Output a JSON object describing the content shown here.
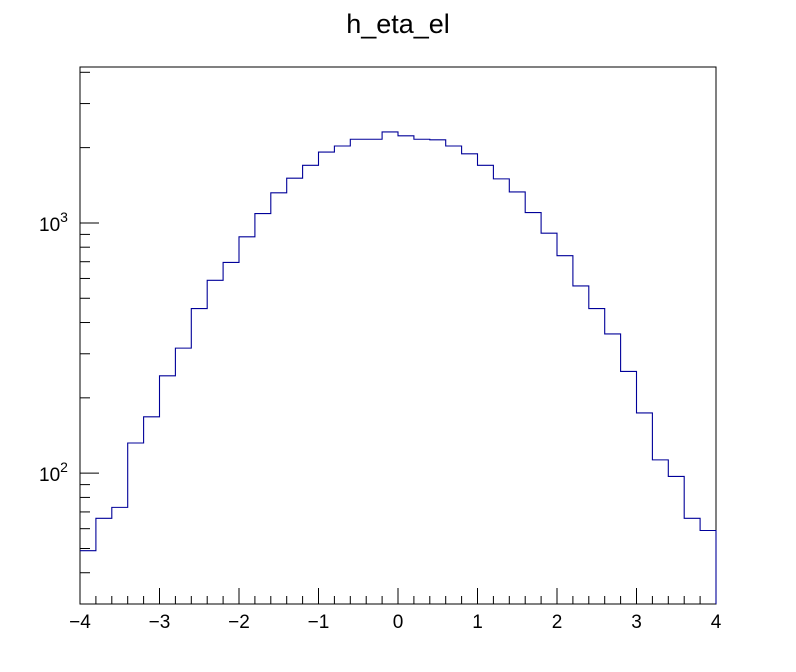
{
  "chart_data": {
    "type": "histogram",
    "title": "h_eta_el",
    "xlabel": "",
    "ylabel": "",
    "x_scale": "linear",
    "y_scale": "log",
    "xlim": [
      -4,
      4
    ],
    "ylim": [
      30,
      4200
    ],
    "grid": false,
    "legend": "none",
    "line_color": "#000099",
    "x_tick_labels": [
      "−4",
      "−3",
      "−2",
      "−1",
      "0",
      "1",
      "2",
      "3",
      "4"
    ],
    "y_tick_labels": [
      {
        "value": 100,
        "base": "10",
        "exp": "2"
      },
      {
        "value": 1000,
        "base": "10",
        "exp": "3"
      }
    ],
    "bin_edges": [
      -4.0,
      -3.8,
      -3.6,
      -3.4,
      -3.2,
      -3.0,
      -2.8,
      -2.6,
      -2.4,
      -2.2,
      -2.0,
      -1.8,
      -1.6,
      -1.4,
      -1.2,
      -1.0,
      -0.8,
      -0.6,
      -0.4,
      -0.2,
      0.0,
      0.2,
      0.4,
      0.6,
      0.8,
      1.0,
      1.2,
      1.4,
      1.6,
      1.8,
      2.0,
      2.2,
      2.4,
      2.6,
      2.8,
      3.0,
      3.2,
      3.4,
      3.6,
      3.8,
      4.0
    ],
    "values": [
      49,
      66,
      73,
      132,
      168,
      245,
      316,
      455,
      590,
      695,
      880,
      1090,
      1320,
      1510,
      1700,
      1920,
      2030,
      2160,
      2160,
      2310,
      2230,
      2160,
      2150,
      2030,
      1890,
      1700,
      1500,
      1330,
      1100,
      910,
      740,
      560,
      455,
      360,
      255,
      174,
      113,
      97,
      66,
      59
    ]
  }
}
